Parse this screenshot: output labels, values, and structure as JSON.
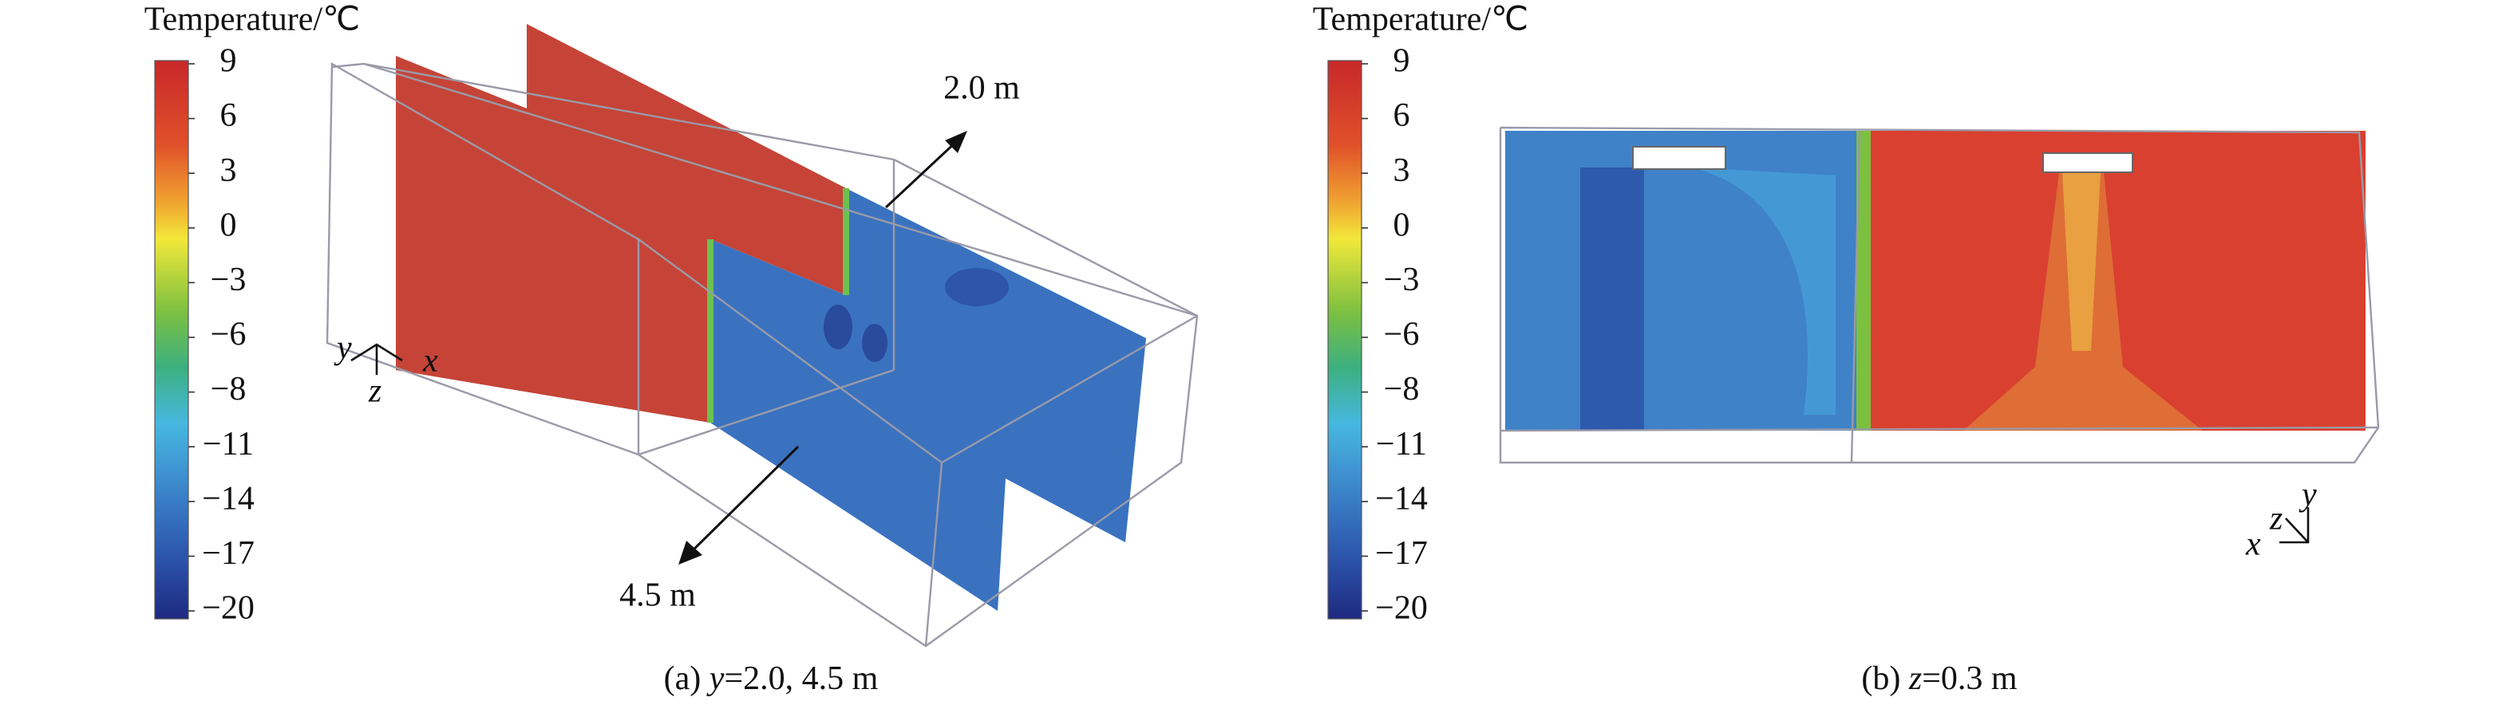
{
  "panel_a": {
    "colorbar": {
      "title": "Temperature/℃",
      "ticks": [
        "9",
        "6",
        "3",
        "0",
        "−3",
        "−6",
        "−8",
        "−11",
        "−14",
        "−17",
        "−20"
      ]
    },
    "labels": [
      "2.0 m",
      "4.5 m"
    ],
    "axes": {
      "x": "x",
      "y": "y",
      "z": "z"
    },
    "caption": {
      "prefix": "(a) ",
      "var": "y",
      "rest": "=2.0, 4.5 m"
    }
  },
  "panel_b": {
    "colorbar": {
      "title": "Temperature/℃",
      "ticks": [
        "9",
        "6",
        "3",
        "0",
        "−3",
        "−6",
        "−8",
        "−11",
        "−14",
        "−17",
        "−20"
      ]
    },
    "axes": {
      "x": "x",
      "y": "y",
      "z": "z"
    },
    "caption": {
      "prefix": "(b) ",
      "var": "z",
      "rest": "=0.3 m"
    }
  }
}
